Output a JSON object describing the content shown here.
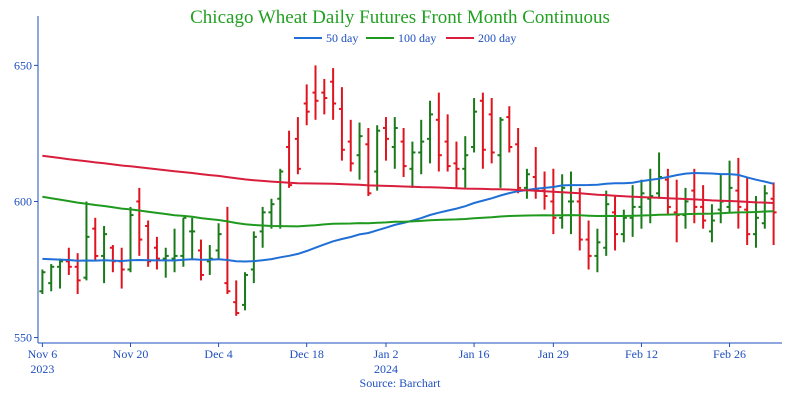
{
  "chart_data": {
    "type": "ohlc",
    "title": "Chicago Wheat Daily Futures Front Month Continuous",
    "source": "Source: Barchart",
    "colors": {
      "title": "#22a022",
      "up": "#1a7a1a",
      "down": "#e0141e",
      "ma50": "#1f6fd6",
      "ma100": "#1f9a1f",
      "ma200": "#d81e3c",
      "axis": "#1f4fbf"
    },
    "x_ticks": [
      {
        "i": 0,
        "label": "Nov 6",
        "sub": "2023"
      },
      {
        "i": 10,
        "label": "Nov 20",
        "sub": ""
      },
      {
        "i": 20,
        "label": "Dec 4",
        "sub": ""
      },
      {
        "i": 30,
        "label": "Dec 18",
        "sub": ""
      },
      {
        "i": 39,
        "label": "Jan 2",
        "sub": "2024"
      },
      {
        "i": 49,
        "label": "Jan 16",
        "sub": ""
      },
      {
        "i": 58,
        "label": "Jan 29",
        "sub": ""
      },
      {
        "i": 68,
        "label": "Feb 12",
        "sub": ""
      },
      {
        "i": 78,
        "label": "Feb 26",
        "sub": ""
      }
    ],
    "y_ticks": [
      550,
      600,
      650
    ],
    "ylim": [
      548,
      663
    ],
    "n_bars": 84,
    "legend": [
      {
        "label": "50 day",
        "color": "#1f6fd6"
      },
      {
        "label": "100 day",
        "color": "#1f9a1f"
      },
      {
        "label": "200 day",
        "color": "#d81e3c"
      }
    ],
    "ohlc": [
      [
        567,
        575,
        566,
        574
      ],
      [
        570,
        577,
        567,
        576
      ],
      [
        576,
        579,
        568,
        578
      ],
      [
        578,
        583,
        573,
        576
      ],
      [
        576,
        581,
        566,
        571
      ],
      [
        572,
        600,
        571,
        587
      ],
      [
        590,
        594,
        578,
        580
      ],
      [
        580,
        591,
        570,
        588
      ],
      [
        583,
        584,
        574,
        578
      ],
      [
        578,
        583,
        568,
        575
      ],
      [
        575,
        598,
        574,
        595
      ],
      [
        600,
        605,
        580,
        586
      ],
      [
        591,
        593,
        576,
        578
      ],
      [
        583,
        587,
        575,
        579
      ],
      [
        579,
        583,
        572,
        580
      ],
      [
        579,
        590,
        574,
        580
      ],
      [
        580,
        594,
        576,
        594
      ],
      [
        589,
        594,
        579,
        589
      ],
      [
        582,
        586,
        571,
        573
      ],
      [
        578,
        584,
        573,
        579
      ],
      [
        582,
        592,
        579,
        588
      ],
      [
        570,
        598,
        566,
        567
      ],
      [
        563,
        571,
        558,
        559
      ],
      [
        562,
        574,
        560,
        573
      ],
      [
        575,
        589,
        570,
        587
      ],
      [
        589,
        598,
        583,
        596
      ],
      [
        596,
        601,
        590,
        599
      ],
      [
        601,
        612,
        590,
        611
      ],
      [
        620,
        626,
        605,
        606
      ],
      [
        623,
        631,
        610,
        612
      ],
      [
        636,
        643,
        628,
        633
      ],
      [
        640,
        650,
        630,
        637
      ],
      [
        640,
        645,
        632,
        638
      ],
      [
        644,
        649,
        630,
        636
      ],
      [
        634,
        642,
        615,
        619
      ],
      [
        622,
        630,
        611,
        614
      ],
      [
        617,
        629,
        608,
        624
      ],
      [
        621,
        627,
        602,
        603
      ],
      [
        611,
        628,
        604,
        626
      ],
      [
        627,
        631,
        615,
        623
      ],
      [
        620,
        631,
        612,
        627
      ],
      [
        622,
        627,
        609,
        613
      ],
      [
        612,
        622,
        605,
        618
      ],
      [
        618,
        630,
        610,
        622
      ],
      [
        623,
        637,
        614,
        632
      ],
      [
        630,
        640,
        611,
        617
      ],
      [
        622,
        632,
        611,
        613
      ],
      [
        614,
        622,
        605,
        612
      ],
      [
        612,
        624,
        605,
        617
      ],
      [
        620,
        638,
        618,
        633
      ],
      [
        637,
        640,
        612,
        619
      ],
      [
        632,
        638,
        614,
        618
      ],
      [
        617,
        631,
        605,
        630
      ],
      [
        631,
        635,
        618,
        620
      ],
      [
        621,
        627,
        603,
        605
      ],
      [
        605,
        612,
        601,
        610
      ],
      [
        609,
        620,
        601,
        604
      ],
      [
        604,
        611,
        597,
        602
      ],
      [
        600,
        612,
        588,
        594
      ],
      [
        594,
        610,
        590,
        605
      ],
      [
        600,
        611,
        588,
        600
      ],
      [
        600,
        605,
        582,
        586
      ],
      [
        586,
        593,
        575,
        580
      ],
      [
        580,
        590,
        574,
        585
      ],
      [
        583,
        604,
        580,
        599
      ],
      [
        596,
        602,
        582,
        588
      ],
      [
        588,
        597,
        585,
        594
      ],
      [
        594,
        606,
        587,
        598
      ],
      [
        598,
        608,
        590,
        603
      ],
      [
        601,
        612,
        592,
        602
      ],
      [
        603,
        618,
        601,
        609
      ],
      [
        608,
        612,
        595,
        598
      ],
      [
        596,
        608,
        585,
        595
      ],
      [
        595,
        605,
        590,
        600
      ],
      [
        604,
        612,
        592,
        598
      ],
      [
        598,
        606,
        590,
        593
      ],
      [
        589,
        599,
        585,
        593
      ],
      [
        597,
        610,
        592,
        600
      ],
      [
        598,
        615,
        596,
        605
      ],
      [
        604,
        616,
        590,
        598
      ],
      [
        597,
        609,
        584,
        588
      ],
      [
        588,
        602,
        583,
        594
      ],
      [
        592,
        606,
        590,
        603
      ],
      [
        601,
        607,
        584,
        596
      ]
    ]
  }
}
